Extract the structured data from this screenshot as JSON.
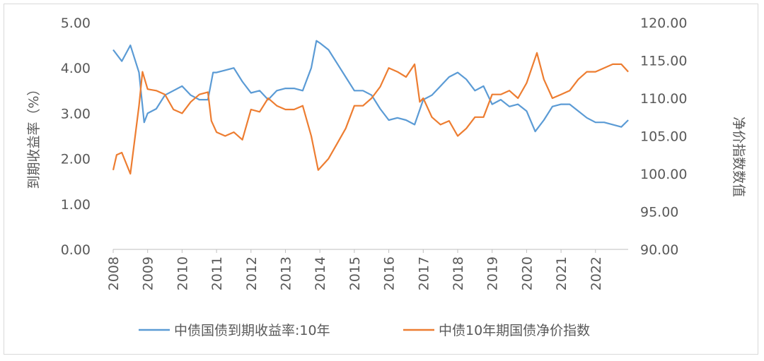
{
  "chart_data": {
    "type": "line",
    "title": "",
    "ylabel": "到期收益率（%）",
    "y2label": "净价指数数值",
    "ylim": [
      0,
      5
    ],
    "y2lim": [
      90,
      120
    ],
    "yticks": [
      "0.00",
      "1.00",
      "2.00",
      "3.00",
      "4.00",
      "5.00"
    ],
    "y2ticks": [
      "90.00",
      "95.00",
      "100.00",
      "105.00",
      "110.00",
      "115.00",
      "120.00"
    ],
    "xticks": [
      "2008",
      "2009",
      "2010",
      "2011",
      "2012",
      "2013",
      "2014",
      "2015",
      "2016",
      "2017",
      "2018",
      "2019",
      "2020",
      "2021",
      "2022"
    ],
    "grid": false,
    "legend": "bottom",
    "series": [
      {
        "name": "中债国债到期收益率:10年",
        "axis": "left",
        "color": "#5b9bd5",
        "x": [
          2008.0,
          2008.25,
          2008.5,
          2008.75,
          2008.9,
          2009.0,
          2009.25,
          2009.5,
          2009.75,
          2010.0,
          2010.25,
          2010.5,
          2010.75,
          2010.9,
          2011.0,
          2011.25,
          2011.5,
          2011.75,
          2012.0,
          2012.25,
          2012.5,
          2012.75,
          2013.0,
          2013.25,
          2013.5,
          2013.75,
          2013.9,
          2014.0,
          2014.25,
          2014.5,
          2014.75,
          2015.0,
          2015.25,
          2015.5,
          2015.75,
          2016.0,
          2016.25,
          2016.5,
          2016.75,
          2017.0,
          2017.25,
          2017.5,
          2017.75,
          2018.0,
          2018.25,
          2018.5,
          2018.75,
          2019.0,
          2019.25,
          2019.5,
          2019.75,
          2020.0,
          2020.25,
          2020.5,
          2020.75,
          2021.0,
          2021.25,
          2021.5,
          2021.75,
          2022.0,
          2022.25,
          2022.5,
          2022.75,
          2022.95
        ],
        "y": [
          4.4,
          4.15,
          4.5,
          3.9,
          2.8,
          3.0,
          3.1,
          3.4,
          3.5,
          3.6,
          3.4,
          3.3,
          3.3,
          3.9,
          3.9,
          3.95,
          4.0,
          3.7,
          3.45,
          3.5,
          3.3,
          3.5,
          3.55,
          3.55,
          3.5,
          4.0,
          4.6,
          4.55,
          4.4,
          4.1,
          3.8,
          3.5,
          3.5,
          3.4,
          3.1,
          2.85,
          2.9,
          2.85,
          2.75,
          3.3,
          3.4,
          3.6,
          3.8,
          3.9,
          3.75,
          3.5,
          3.6,
          3.2,
          3.3,
          3.15,
          3.2,
          3.05,
          2.6,
          2.85,
          3.15,
          3.2,
          3.2,
          3.05,
          2.9,
          2.8,
          2.8,
          2.75,
          2.7,
          2.85
        ]
      },
      {
        "name": "中债10年期国债净价指数",
        "axis": "right",
        "color": "#ed7d31",
        "x": [
          2008.0,
          2008.1,
          2008.25,
          2008.5,
          2008.75,
          2008.85,
          2009.0,
          2009.25,
          2009.5,
          2009.75,
          2010.0,
          2010.25,
          2010.5,
          2010.75,
          2010.85,
          2011.0,
          2011.25,
          2011.5,
          2011.75,
          2012.0,
          2012.25,
          2012.5,
          2012.75,
          2013.0,
          2013.25,
          2013.5,
          2013.75,
          2013.95,
          2014.25,
          2014.5,
          2014.75,
          2015.0,
          2015.25,
          2015.5,
          2015.75,
          2016.0,
          2016.25,
          2016.5,
          2016.75,
          2016.9,
          2017.0,
          2017.25,
          2017.5,
          2017.75,
          2018.0,
          2018.25,
          2018.5,
          2018.75,
          2019.0,
          2019.25,
          2019.5,
          2019.75,
          2020.0,
          2020.3,
          2020.5,
          2020.75,
          2021.0,
          2021.25,
          2021.5,
          2021.75,
          2022.0,
          2022.25,
          2022.5,
          2022.75,
          2022.95
        ],
        "y": [
          100.5,
          102.5,
          102.8,
          100,
          109,
          113.5,
          111.2,
          111,
          110.5,
          108.5,
          108,
          109.5,
          110.5,
          110.8,
          107,
          105.5,
          105,
          105.5,
          104.5,
          108.5,
          108.2,
          110,
          109,
          108.5,
          108.5,
          109,
          105,
          100.5,
          102,
          104,
          106,
          109,
          109,
          110,
          111.5,
          114,
          113.5,
          112.8,
          114.5,
          109.5,
          110,
          107.5,
          106.5,
          107,
          105,
          106,
          107.5,
          107.5,
          110.5,
          110.5,
          111,
          110,
          112,
          116,
          112.5,
          110,
          110.5,
          111,
          112.5,
          113.5,
          113.5,
          114,
          114.5,
          114.5,
          113.5
        ]
      }
    ]
  }
}
